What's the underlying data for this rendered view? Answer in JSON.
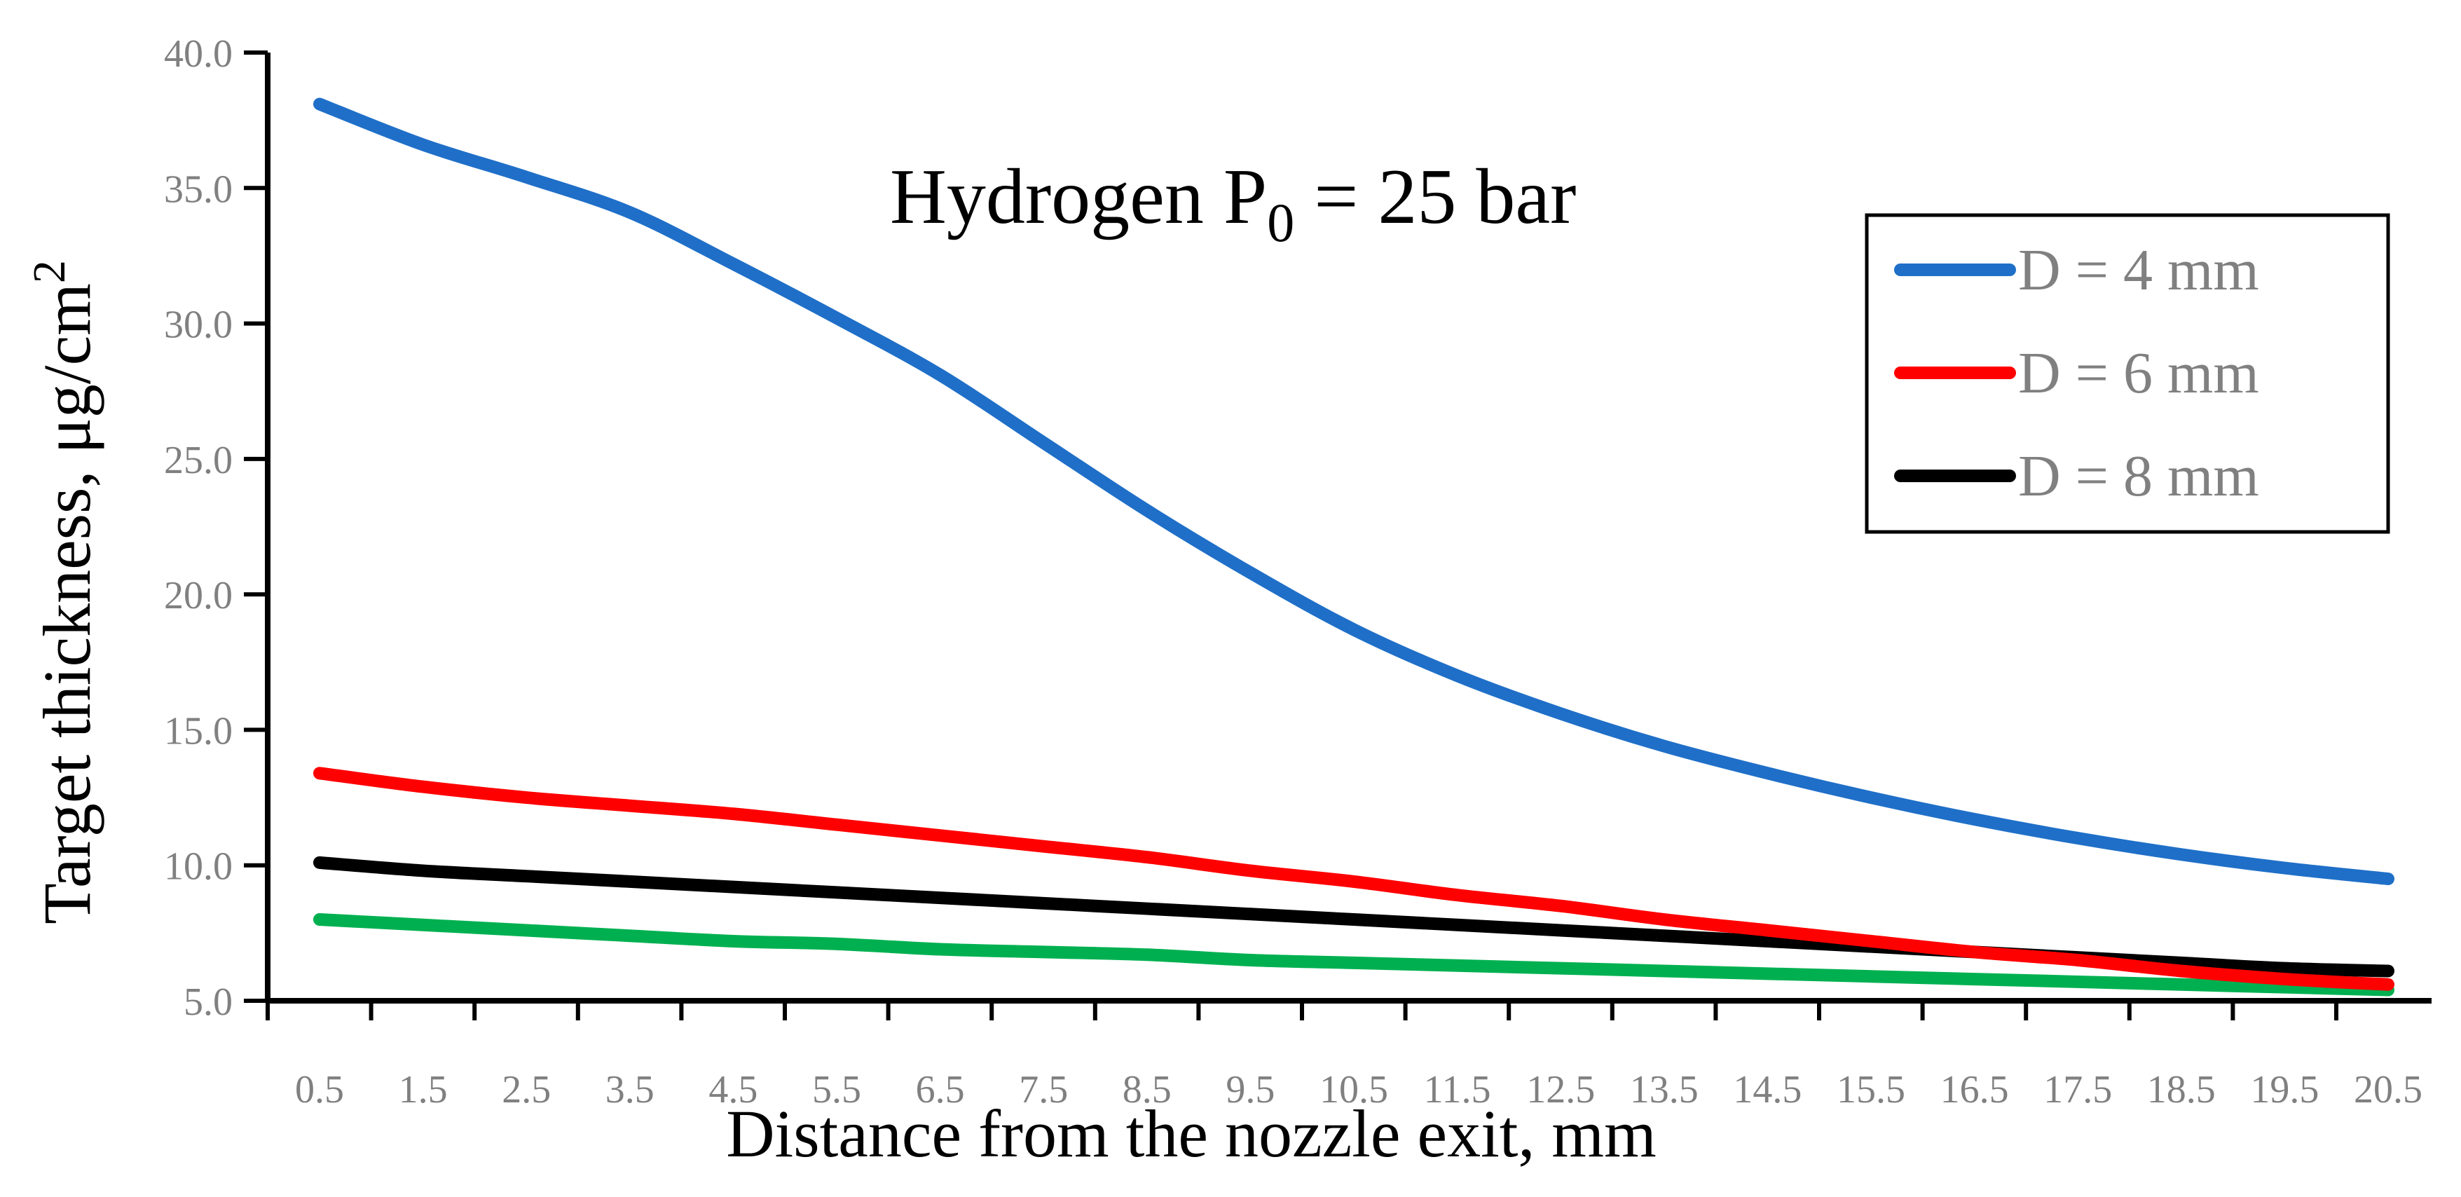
{
  "chart_data": {
    "type": "line",
    "title": "Hydrogen P",
    "title_subscript": "0",
    "title_suffix": " = 25 bar",
    "xlabel": "Distance from the nozzle exit,  mm",
    "ylabel": "Target thickness, μg/cm",
    "ylabel_superscript": "2",
    "ylim": [
      5.0,
      40.0
    ],
    "yticks": [
      "5.0",
      "10.0",
      "15.0",
      "20.0",
      "25.0",
      "30.0",
      "35.0",
      "40.0"
    ],
    "categories": [
      "0.5",
      "1.5",
      "2.5",
      "3.5",
      "4.5",
      "5.5",
      "6.5",
      "7.5",
      "8.5",
      "9.5",
      "10.5",
      "11.5",
      "12.5",
      "13.5",
      "14.5",
      "15.5",
      "16.5",
      "17.5",
      "18.5",
      "19.5",
      "20.5"
    ],
    "grid": false,
    "legend_position": "top-right",
    "series": [
      {
        "name": "D = 4 mm",
        "color": "#1f6fc8",
        "values": [
          38.1,
          36.6,
          35.4,
          34.1,
          32.2,
          30.2,
          28.1,
          25.6,
          23.1,
          20.8,
          18.7,
          17.0,
          15.6,
          14.4,
          13.4,
          12.5,
          11.7,
          11.0,
          10.4,
          9.9,
          9.5
        ]
      },
      {
        "name": "D = 6 mm",
        "color": "#ff0000",
        "values": [
          13.4,
          12.9,
          12.5,
          12.2,
          11.9,
          11.5,
          11.1,
          10.7,
          10.3,
          9.8,
          9.4,
          8.9,
          8.5,
          8.0,
          7.6,
          7.2,
          6.8,
          6.5,
          6.1,
          5.8,
          5.6
        ]
      },
      {
        "name": "D = 8  mm",
        "color": "#000000",
        "values": [
          10.1,
          9.8,
          9.6,
          9.4,
          9.2,
          9.0,
          8.8,
          8.6,
          8.4,
          8.2,
          8.0,
          7.8,
          7.6,
          7.4,
          7.2,
          7.0,
          6.8,
          6.6,
          6.4,
          6.2,
          6.1
        ]
      },
      {
        "color": "#00b050",
        "values": [
          8.0,
          7.8,
          7.6,
          7.4,
          7.2,
          7.1,
          6.9,
          6.8,
          6.7,
          6.5,
          6.4,
          6.3,
          6.2,
          6.1,
          6.0,
          5.9,
          5.8,
          5.7,
          5.6,
          5.5,
          5.4
        ]
      }
    ]
  }
}
